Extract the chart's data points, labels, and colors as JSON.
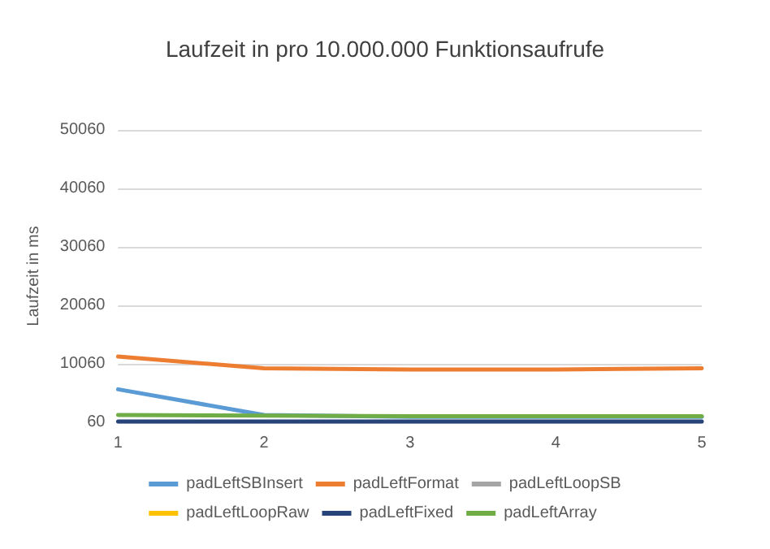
{
  "chart_data": {
    "type": "line",
    "title": "Laufzeit in pro 10.000.000 Funktionsaufrufe",
    "ylabel": "Laufzeit in ms",
    "categories": [
      "1",
      "2",
      "3",
      "4",
      "5"
    ],
    "series": [
      {
        "name": "padLeftSBInsert",
        "color": "#5b9bd5",
        "values": [
          5700,
          1300,
          1000,
          1000,
          1000
        ]
      },
      {
        "name": "padLeftFormat",
        "color": "#ed7d31",
        "values": [
          11300,
          9300,
          9100,
          9100,
          9300
        ]
      },
      {
        "name": "padLeftLoopSB",
        "color": "#a5a5a5",
        "values": [
          null,
          null,
          null,
          null,
          null
        ]
      },
      {
        "name": "padLeftLoopRaw",
        "color": "#ffc000",
        "values": [
          null,
          null,
          null,
          null,
          null
        ]
      },
      {
        "name": "padLeftFixed",
        "color": "#264478",
        "values": [
          200,
          200,
          200,
          200,
          200
        ]
      },
      {
        "name": "padLeftArray",
        "color": "#70ad47",
        "values": [
          1300,
          1200,
          1100,
          1100,
          1100
        ]
      }
    ],
    "ylim": [
      60,
      50060
    ],
    "yticks": [
      60,
      10060,
      20060,
      30060,
      40060,
      50060
    ],
    "grid": "y",
    "legend": "bottom",
    "marker": "none",
    "line_style": "solid"
  }
}
